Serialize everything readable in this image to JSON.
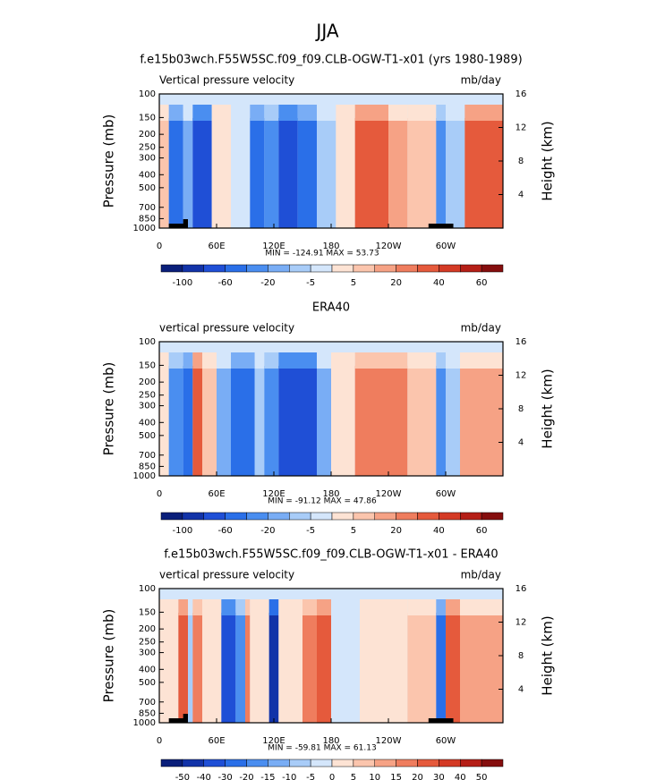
{
  "suptitle": "JJA",
  "chart_data": [
    {
      "type": "contour",
      "title": "f.e15b03wch.F55W5SC.f09_f09.CLB-OGW-T1-x01 (yrs 1980-1989)",
      "left_label": "Vertical pressure velocity",
      "right_label": "mb/day",
      "ylabel": "Pressure (mb)",
      "y2label": "Height (km)",
      "xlim": [
        0,
        360
      ],
      "xticks": [
        0,
        {
          "value": 60,
          "label": "60E"
        },
        {
          "value": 120,
          "label": "120E"
        },
        180,
        {
          "value": 240,
          "label": "120W"
        },
        {
          "value": 300,
          "label": "60W"
        }
      ],
      "ylim": [
        1000,
        100
      ],
      "log_y": true,
      "yticks": [
        100,
        150,
        200,
        250,
        300,
        400,
        500,
        700,
        850,
        1000
      ],
      "y2lim": [
        0,
        16
      ],
      "y2ticks": [
        4,
        8,
        12,
        16
      ],
      "stats": "MIN = -124.91   MAX =  53.73",
      "colorbar": {
        "labels": [
          -100,
          -60,
          -20,
          -5,
          5,
          20,
          40,
          60
        ],
        "colors": [
          "#0a1f7a",
          "#1233a8",
          "#1f4fd6",
          "#2a6fe8",
          "#4a8ef0",
          "#79adf5",
          "#a8ccf8",
          "#d4e6fb",
          "#fde3d4",
          "#fbc5ad",
          "#f6a285",
          "#ef7d5e",
          "#e55a3c",
          "#d43a25",
          "#b51f17",
          "#850e0e"
        ]
      }
    },
    {
      "type": "contour",
      "title": "ERA40",
      "left_label": "vertical pressure velocity",
      "right_label": "mb/day",
      "ylabel": "Pressure (mb)",
      "y2label": "Height (km)",
      "xlim": [
        0,
        360
      ],
      "xticks": [
        0,
        {
          "value": 60,
          "label": "60E"
        },
        {
          "value": 120,
          "label": "120E"
        },
        180,
        {
          "value": 240,
          "label": "120W"
        },
        {
          "value": 300,
          "label": "60W"
        }
      ],
      "ylim": [
        1000,
        100
      ],
      "log_y": true,
      "yticks": [
        100,
        150,
        200,
        250,
        300,
        400,
        500,
        700,
        850,
        1000
      ],
      "y2lim": [
        0,
        16
      ],
      "y2ticks": [
        4,
        8,
        12,
        16
      ],
      "stats": "MIN = -91.12   MAX =  47.86",
      "colorbar": {
        "labels": [
          -100,
          -60,
          -20,
          -5,
          5,
          20,
          40,
          60
        ],
        "colors": [
          "#0a1f7a",
          "#1233a8",
          "#1f4fd6",
          "#2a6fe8",
          "#4a8ef0",
          "#79adf5",
          "#a8ccf8",
          "#d4e6fb",
          "#fde3d4",
          "#fbc5ad",
          "#f6a285",
          "#ef7d5e",
          "#e55a3c",
          "#d43a25",
          "#b51f17",
          "#850e0e"
        ]
      }
    },
    {
      "type": "contour",
      "title": "f.e15b03wch.F55W5SC.f09_f09.CLB-OGW-T1-x01 - ERA40",
      "left_label": "vertical pressure velocity",
      "right_label": "mb/day",
      "ylabel": "Pressure (mb)",
      "y2label": "Height (km)",
      "xlim": [
        0,
        360
      ],
      "xticks": [
        0,
        {
          "value": 60,
          "label": "60E"
        },
        {
          "value": 120,
          "label": "120E"
        },
        180,
        {
          "value": 240,
          "label": "120W"
        },
        {
          "value": 300,
          "label": "60W"
        }
      ],
      "ylim": [
        1000,
        100
      ],
      "log_y": true,
      "yticks": [
        100,
        150,
        200,
        250,
        300,
        400,
        500,
        700,
        850,
        1000
      ],
      "y2lim": [
        0,
        16
      ],
      "y2ticks": [
        4,
        8,
        12,
        16
      ],
      "stats": "MIN = -59.81   MAX =  61.13",
      "colorbar": {
        "labels": [
          -50,
          -40,
          -30,
          -20,
          -15,
          -10,
          -5,
          0,
          5,
          10,
          15,
          20,
          30,
          40,
          50
        ],
        "colors": [
          "#0a1f7a",
          "#1233a8",
          "#1f4fd6",
          "#2a6fe8",
          "#4a8ef0",
          "#79adf5",
          "#a8ccf8",
          "#d4e6fb",
          "#fde3d4",
          "#fbc5ad",
          "#f6a285",
          "#ef7d5e",
          "#e55a3c",
          "#d43a25",
          "#b51f17",
          "#850e0e"
        ]
      }
    }
  ]
}
